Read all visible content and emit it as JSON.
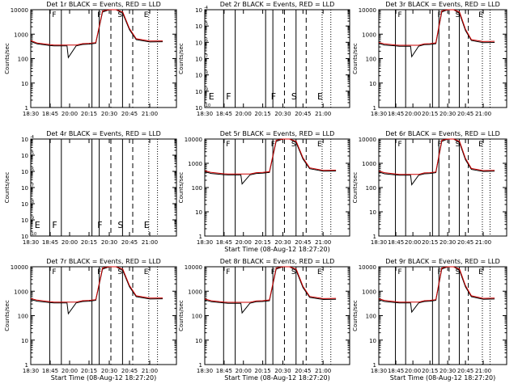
{
  "chart_data": [
    {
      "type": "line",
      "title": "Det 1r BLACK = Events, RED = LLD",
      "xlabel": "",
      "ylabel": "Counts/sec",
      "yscale": "log",
      "ylim": [
        1,
        10000
      ],
      "xlim": [
        "18:30",
        "21:15"
      ],
      "x_ticks": [
        "18:30",
        "18:45",
        "20:00",
        "20:15",
        "20:30",
        "20:45",
        "21:00"
      ],
      "y_ticks": [
        "1",
        "10",
        "100",
        "1000",
        "10000"
      ],
      "markers": [
        "F",
        "F",
        "S",
        "E"
      ],
      "series": [
        {
          "color": "#000000",
          "x": [
            "18:30",
            "18:35",
            "18:45",
            "19:00",
            "19:30",
            "19:50",
            "19:55",
            "20:05",
            "20:10",
            "20:15",
            "20:20",
            "20:25",
            "20:30",
            "20:35",
            "20:40",
            "20:45",
            "20:50",
            "21:00",
            "21:10"
          ],
          "y": [
            500,
            400,
            340,
            330,
            330,
            330,
            110,
            330,
            380,
            390,
            420,
            8000,
            12000,
            11000,
            7000,
            1500,
            600,
            480,
            490
          ]
        },
        {
          "color": "#cc0000",
          "x": [
            "18:30",
            "18:35",
            "18:45",
            "19:00",
            "19:30",
            "19:50",
            "19:55",
            "20:05",
            "20:10",
            "20:15",
            "20:20",
            "20:25",
            "20:30",
            "20:35",
            "20:40",
            "20:45",
            "20:50",
            "21:00",
            "21:10"
          ],
          "y": [
            550,
            430,
            370,
            360,
            360,
            360,
            360,
            360,
            410,
            420,
            450,
            9000,
            13000,
            12000,
            8000,
            1700,
            650,
            520,
            530
          ]
        }
      ]
    },
    {
      "type": "line",
      "title": "Det 2r BLACK = Events, RED = LLD",
      "xlabel": "",
      "ylabel": "Counts/sec",
      "yscale": "log",
      "ylim": [
        1e-10,
        0.0001
      ],
      "xlim": [
        "18:30",
        "21:15"
      ],
      "x_ticks": [
        "18:30",
        "18:45",
        "20:00",
        "20:15",
        "20:30",
        "20:45",
        "21:00"
      ],
      "y_ticks": [
        "10",
        "10",
        "10",
        "10",
        "10",
        "10",
        "10"
      ],
      "y_tick_exponents": [
        "-10",
        "-9",
        "-8",
        "-7",
        "-6",
        "-5",
        "-4"
      ],
      "markers": [
        "E",
        "F",
        "F",
        "S",
        "E"
      ],
      "series": []
    },
    {
      "type": "line",
      "title": "Det 3r BLACK = Events, RED = LLD",
      "xlabel": "",
      "ylabel": "Counts/sec",
      "yscale": "log",
      "ylim": [
        1,
        10000
      ],
      "xlim": [
        "18:30",
        "21:15"
      ],
      "x_ticks": [
        "18:30",
        "18:45",
        "20:00",
        "20:15",
        "20:30",
        "20:45",
        "21:00"
      ],
      "y_ticks": [
        "1",
        "10",
        "100",
        "1000",
        "10000"
      ],
      "markers": [
        "F",
        "F",
        "S",
        "E"
      ],
      "series": [
        {
          "color": "#000000",
          "x": [
            "18:30",
            "18:35",
            "18:45",
            "19:00",
            "19:30",
            "19:50",
            "19:55",
            "20:05",
            "20:10",
            "20:15",
            "20:20",
            "20:25",
            "20:30",
            "20:35",
            "20:40",
            "20:45",
            "20:50",
            "21:00",
            "21:10"
          ],
          "y": [
            420,
            360,
            330,
            320,
            320,
            320,
            120,
            320,
            370,
            380,
            410,
            8000,
            12000,
            11000,
            7000,
            1400,
            550,
            450,
            460
          ]
        },
        {
          "color": "#cc0000",
          "x": [
            "18:30",
            "18:35",
            "18:45",
            "19:00",
            "19:30",
            "19:50",
            "19:55",
            "20:05",
            "20:10",
            "20:15",
            "20:20",
            "20:25",
            "20:30",
            "20:35",
            "20:40",
            "20:45",
            "20:50",
            "21:00",
            "21:10"
          ],
          "y": [
            460,
            400,
            360,
            350,
            350,
            350,
            350,
            350,
            400,
            410,
            440,
            9000,
            13000,
            12000,
            8000,
            1600,
            600,
            500,
            510
          ]
        }
      ]
    },
    {
      "type": "line",
      "title": "Det 4r BLACK = Events, RED = LLD",
      "xlabel": "",
      "ylabel": "Counts/sec",
      "yscale": "log",
      "ylim": [
        1e-10,
        0.0001
      ],
      "xlim": [
        "18:30",
        "21:15"
      ],
      "x_ticks": [
        "18:30",
        "18:45",
        "20:00",
        "20:15",
        "20:30",
        "20:45",
        "21:00"
      ],
      "y_ticks": [
        "10",
        "10",
        "10",
        "10",
        "10",
        "10",
        "10"
      ],
      "y_tick_exponents": [
        "-10",
        "-9",
        "-8",
        "-7",
        "-6",
        "-5",
        "-4"
      ],
      "markers": [
        "E",
        "F",
        "F",
        "S",
        "E"
      ],
      "series": []
    },
    {
      "type": "line",
      "title": "Det 5r BLACK = Events, RED = LLD",
      "xlabel": "Start Time (08-Aug-12 18:27:20)",
      "ylabel": "Counts/sec",
      "yscale": "log",
      "ylim": [
        1,
        10000
      ],
      "xlim": [
        "18:30",
        "21:15"
      ],
      "x_ticks": [
        "18:30",
        "18:45",
        "20:00",
        "20:15",
        "20:30",
        "20:45",
        "21:00"
      ],
      "y_ticks": [
        "1",
        "10",
        "100",
        "1000",
        "10000"
      ],
      "markers": [
        "F",
        "F",
        "S",
        "E"
      ],
      "series": [
        {
          "color": "#000000",
          "x": [
            "18:30",
            "18:35",
            "18:45",
            "19:00",
            "19:30",
            "19:50",
            "19:55",
            "20:05",
            "20:10",
            "20:15",
            "20:20",
            "20:25",
            "20:30",
            "20:35",
            "20:40",
            "20:45",
            "20:50",
            "21:00",
            "21:10"
          ],
          "y": [
            450,
            380,
            340,
            330,
            330,
            330,
            140,
            330,
            380,
            390,
            420,
            8000,
            12000,
            11000,
            7000,
            1500,
            600,
            470,
            480
          ]
        },
        {
          "color": "#cc0000",
          "x": [
            "18:30",
            "18:35",
            "18:45",
            "19:00",
            "19:30",
            "19:50",
            "19:55",
            "20:05",
            "20:10",
            "20:15",
            "20:20",
            "20:25",
            "20:30",
            "20:35",
            "20:40",
            "20:45",
            "20:50",
            "21:00",
            "21:10"
          ],
          "y": [
            490,
            420,
            370,
            360,
            360,
            360,
            360,
            360,
            410,
            420,
            450,
            9000,
            13000,
            12000,
            8000,
            1700,
            650,
            510,
            520
          ]
        }
      ]
    },
    {
      "type": "line",
      "title": "Det 6r BLACK = Events, RED = LLD",
      "xlabel": "",
      "ylabel": "Counts/sec",
      "yscale": "log",
      "ylim": [
        1,
        10000
      ],
      "xlim": [
        "18:30",
        "21:15"
      ],
      "x_ticks": [
        "18:30",
        "18:45",
        "20:00",
        "20:15",
        "20:30",
        "20:45",
        "21:00"
      ],
      "y_ticks": [
        "1",
        "10",
        "100",
        "1000",
        "10000"
      ],
      "markers": [
        "F",
        "F",
        "S",
        "E"
      ],
      "series": [
        {
          "color": "#000000",
          "x": [
            "18:30",
            "18:35",
            "18:45",
            "19:00",
            "19:30",
            "19:50",
            "19:55",
            "20:05",
            "20:10",
            "20:15",
            "20:20",
            "20:25",
            "20:30",
            "20:35",
            "20:40",
            "20:45",
            "20:50",
            "21:00",
            "21:10"
          ],
          "y": [
            440,
            370,
            330,
            320,
            320,
            320,
            130,
            320,
            370,
            380,
            410,
            8000,
            12000,
            11000,
            7000,
            1400,
            560,
            460,
            470
          ]
        },
        {
          "color": "#cc0000",
          "x": [
            "18:30",
            "18:35",
            "18:45",
            "19:00",
            "19:30",
            "19:50",
            "19:55",
            "20:05",
            "20:10",
            "20:15",
            "20:20",
            "20:25",
            "20:30",
            "20:35",
            "20:40",
            "20:45",
            "20:50",
            "21:00",
            "21:10"
          ],
          "y": [
            480,
            410,
            360,
            350,
            350,
            350,
            350,
            350,
            400,
            410,
            440,
            9000,
            13000,
            12000,
            8000,
            1600,
            610,
            500,
            510
          ]
        }
      ]
    },
    {
      "type": "line",
      "title": "Det 7r BLACK = Events, RED = LLD",
      "xlabel": "Start Time (08-Aug-12 18:27:20)",
      "ylabel": "Counts/sec",
      "yscale": "log",
      "ylim": [
        1,
        10000
      ],
      "xlim": [
        "18:30",
        "21:15"
      ],
      "x_ticks": [
        "18:30",
        "18:45",
        "20:00",
        "20:15",
        "20:30",
        "20:45",
        "21:00"
      ],
      "y_ticks": [
        "1",
        "10",
        "100",
        "1000",
        "10000"
      ],
      "markers": [
        "F",
        "F",
        "S",
        "E"
      ],
      "series": [
        {
          "color": "#000000",
          "x": [
            "18:30",
            "18:35",
            "18:45",
            "19:00",
            "19:30",
            "19:50",
            "19:55",
            "20:05",
            "20:10",
            "20:15",
            "20:20",
            "20:25",
            "20:30",
            "20:35",
            "20:40",
            "20:45",
            "20:50",
            "21:00",
            "21:10"
          ],
          "y": [
            460,
            390,
            340,
            330,
            330,
            330,
            120,
            330,
            380,
            390,
            420,
            8000,
            12000,
            11000,
            7000,
            1500,
            600,
            480,
            490
          ]
        },
        {
          "color": "#cc0000",
          "x": [
            "18:30",
            "18:35",
            "18:45",
            "19:00",
            "19:30",
            "19:50",
            "19:55",
            "20:05",
            "20:10",
            "20:15",
            "20:20",
            "20:25",
            "20:30",
            "20:35",
            "20:40",
            "20:45",
            "20:50",
            "21:00",
            "21:10"
          ],
          "y": [
            500,
            430,
            370,
            360,
            360,
            360,
            360,
            360,
            410,
            420,
            450,
            9000,
            13000,
            12000,
            8000,
            1700,
            650,
            520,
            530
          ]
        }
      ]
    },
    {
      "type": "line",
      "title": "Det 8r BLACK = Events, RED = LLD",
      "xlabel": "Start Time (08-Aug-12 18:27:20)",
      "ylabel": "Counts/sec",
      "yscale": "log",
      "ylim": [
        1,
        10000
      ],
      "xlim": [
        "18:30",
        "21:15"
      ],
      "x_ticks": [
        "18:30",
        "18:45",
        "20:00",
        "20:15",
        "20:30",
        "20:45",
        "21:00"
      ],
      "y_ticks": [
        "1",
        "10",
        "100",
        "1000",
        "10000"
      ],
      "markers": [
        "F",
        "F",
        "S",
        "E"
      ],
      "series": [
        {
          "color": "#000000",
          "x": [
            "18:30",
            "18:35",
            "18:45",
            "19:00",
            "19:30",
            "19:50",
            "19:55",
            "20:05",
            "20:10",
            "20:15",
            "20:20",
            "20:25",
            "20:30",
            "20:35",
            "20:40",
            "20:45",
            "20:50",
            "21:00",
            "21:10"
          ],
          "y": [
            440,
            370,
            330,
            320,
            320,
            320,
            130,
            320,
            370,
            380,
            410,
            8000,
            12000,
            11000,
            7000,
            1400,
            560,
            460,
            470
          ]
        },
        {
          "color": "#cc0000",
          "x": [
            "18:30",
            "18:35",
            "18:45",
            "19:00",
            "19:30",
            "19:50",
            "19:55",
            "20:05",
            "20:10",
            "20:15",
            "20:20",
            "20:25",
            "20:30",
            "20:35",
            "20:40",
            "20:45",
            "20:50",
            "21:00",
            "21:10"
          ],
          "y": [
            480,
            410,
            360,
            350,
            350,
            350,
            350,
            350,
            400,
            410,
            440,
            9000,
            13000,
            12000,
            8000,
            1600,
            610,
            500,
            510
          ]
        }
      ]
    },
    {
      "type": "line",
      "title": "Det 9r BLACK = Events, RED = LLD",
      "xlabel": "Start Time (08-Aug-12 18:27:20)",
      "ylabel": "Counts/sec",
      "yscale": "log",
      "ylim": [
        1,
        10000
      ],
      "xlim": [
        "18:30",
        "21:15"
      ],
      "x_ticks": [
        "18:30",
        "18:45",
        "20:00",
        "20:15",
        "20:30",
        "20:45",
        "21:00"
      ],
      "y_ticks": [
        "1",
        "10",
        "100",
        "1000",
        "10000"
      ],
      "markers": [
        "F",
        "F",
        "S",
        "E"
      ],
      "series": [
        {
          "color": "#000000",
          "x": [
            "18:30",
            "18:35",
            "18:45",
            "19:00",
            "19:30",
            "19:50",
            "19:55",
            "20:05",
            "20:10",
            "20:15",
            "20:20",
            "20:25",
            "20:30",
            "20:35",
            "20:40",
            "20:45",
            "20:50",
            "21:00",
            "21:10"
          ],
          "y": [
            450,
            380,
            340,
            330,
            330,
            330,
            140,
            330,
            380,
            390,
            420,
            8000,
            12000,
            11000,
            7000,
            1500,
            600,
            470,
            480
          ]
        },
        {
          "color": "#cc0000",
          "x": [
            "18:30",
            "18:35",
            "18:45",
            "19:00",
            "19:30",
            "19:50",
            "19:55",
            "20:05",
            "20:10",
            "20:15",
            "20:20",
            "20:25",
            "20:30",
            "20:35",
            "20:40",
            "20:45",
            "20:50",
            "21:00",
            "21:10"
          ],
          "y": [
            490,
            420,
            370,
            360,
            360,
            360,
            360,
            360,
            410,
            420,
            450,
            9000,
            13000,
            12000,
            8000,
            1700,
            650,
            510,
            520
          ]
        }
      ]
    }
  ]
}
